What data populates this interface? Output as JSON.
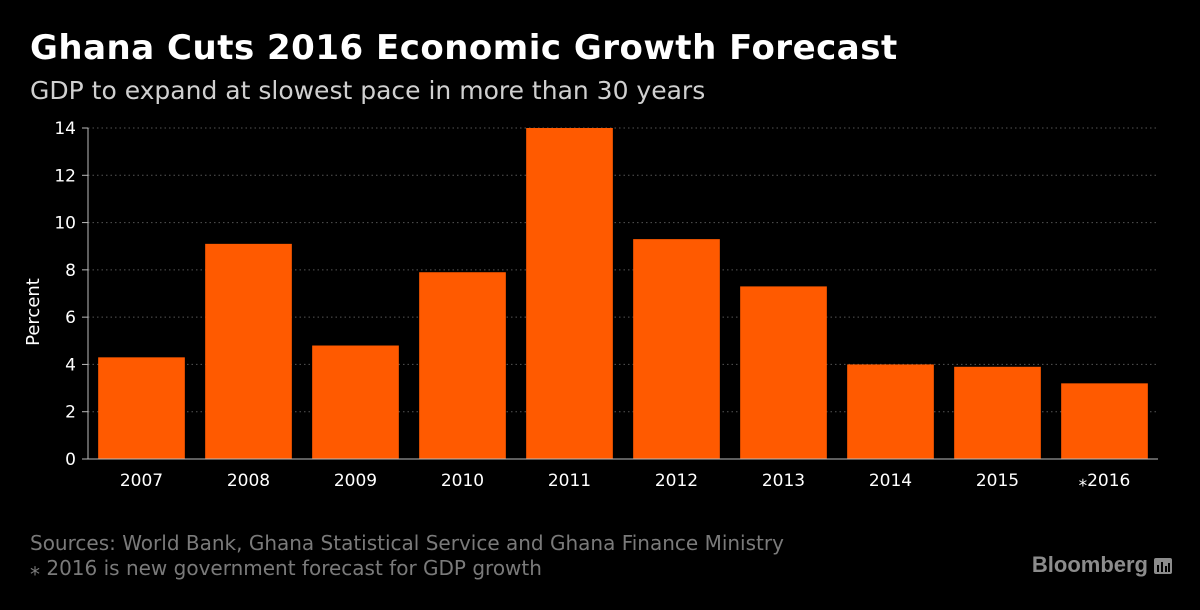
{
  "chart_data": {
    "type": "bar",
    "title": "Ghana Cuts 2016 Economic Growth Forecast",
    "subtitle": "GDP to expand at slowest pace in more than 30 years",
    "xlabel": "",
    "ylabel": "Percent",
    "categories": [
      "2007",
      "2008",
      "2009",
      "2010",
      "2011",
      "2012",
      "2013",
      "2014",
      "2015",
      "⁎2016"
    ],
    "values": [
      4.3,
      9.1,
      4.8,
      7.9,
      14.0,
      9.3,
      7.3,
      4.0,
      3.9,
      3.2
    ],
    "ylim": [
      0,
      14
    ],
    "yticks": [
      0,
      2,
      4,
      6,
      8,
      10,
      12,
      14
    ],
    "grid": true,
    "colors": {
      "bar": "#ff5a00",
      "grid": "#555555",
      "axis": "#bbbbbb",
      "tick_text": "#ffffff"
    }
  },
  "footer": {
    "sources": "Sources: World Bank, Ghana Statistical Service and Ghana Finance Ministry",
    "note": "⁎ 2016 is new government forecast for GDP growth"
  },
  "branding": {
    "logo_text": "Bloomberg"
  }
}
